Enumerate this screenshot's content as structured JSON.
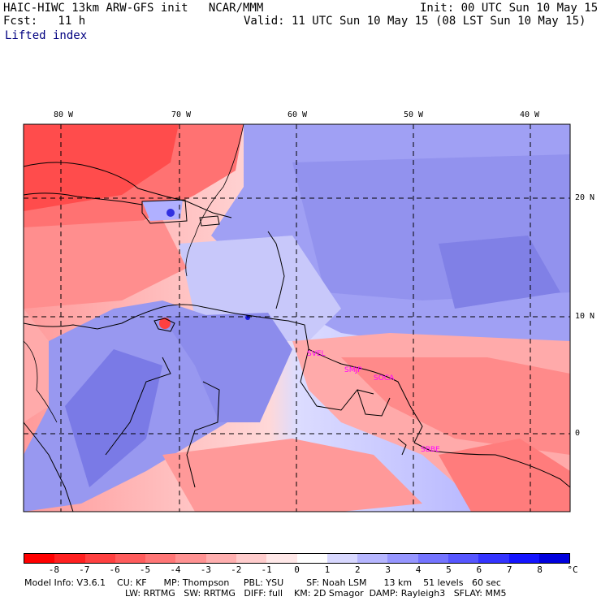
{
  "header": {
    "model_line": "HAIC-HIWC 13km ARW-GFS init   NCAR/MMM",
    "init_line": "Init: 00 UTC Sun 10 May 15",
    "fcst_line": "Fcst:   11 h",
    "valid_line": "Valid: 11 UTC Sun 10 May 15 (08 LST Sun 10 May 15)",
    "field_name": "Lifted index"
  },
  "map": {
    "lon_labels": [
      "80 W",
      "70 W",
      "60 W",
      "50 W",
      "40 W"
    ],
    "lat_labels": [
      "20 N",
      "10 N",
      "0"
    ],
    "stations": [
      "SVEL",
      "SMJP",
      "SOCA",
      "SBBE"
    ]
  },
  "colorbar": {
    "labels": [
      "-8",
      "-7",
      "-6",
      "-5",
      "-4",
      "-3",
      "-2",
      "-1",
      "0",
      "1",
      "2",
      "3",
      "4",
      "5",
      "6",
      "7",
      "8"
    ],
    "unit": "°C",
    "colors": [
      "#ff0000",
      "#ff2020",
      "#ff4040",
      "#ff5c5c",
      "#ff7676",
      "#ff9292",
      "#ffafaf",
      "#ffcccc",
      "#ffe8e8",
      "#ffffff",
      "#d8d8ff",
      "#b6b6ff",
      "#9696ff",
      "#7474ff",
      "#5656ff",
      "#3434ff",
      "#1414ff",
      "#0000dd"
    ]
  },
  "footer": {
    "line1": "Model Info: V3.6.1    CU: KF      MP: Thompson     PBL: YSU        SF: Noah LSM      13 km    51 levels   60 sec",
    "line2": "LW: RRTMG   SW: RRTMG   DIFF: full    KM: 2D Smagor  DAMP: Rayleigh3   SFLAY: MM5"
  }
}
